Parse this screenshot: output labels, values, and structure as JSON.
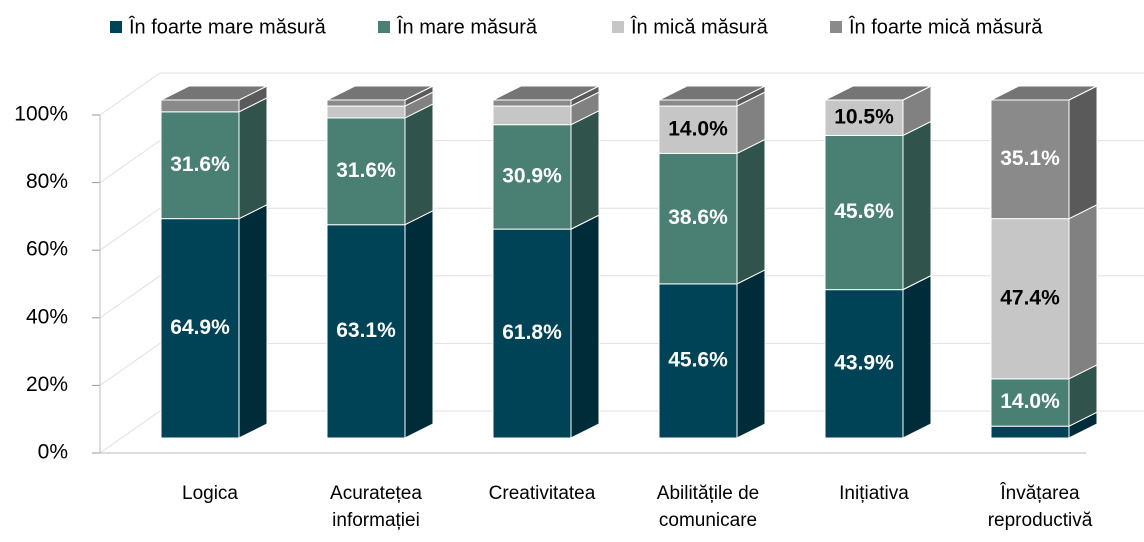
{
  "chart_data": {
    "type": "bar3d_stacked",
    "categories": [
      "Logica",
      "Acuratețea informației",
      "Creativitatea",
      "Abilitățile de comunicare",
      "Inițiativa",
      "Învățarea reproductivă"
    ],
    "series": [
      {
        "name": "În foarte mare măsură",
        "color": "#004357",
        "values": [
          64.9,
          63.1,
          61.8,
          45.6,
          43.9,
          3.5
        ],
        "value_labels": [
          "64.9%",
          "63.1%",
          "61.8%",
          "45.6%",
          "43.9%",
          null
        ]
      },
      {
        "name": "În mare măsură",
        "color": "#4a7f74",
        "values": [
          31.6,
          31.6,
          30.9,
          38.6,
          45.6,
          14.0
        ],
        "value_labels": [
          "31.6%",
          "31.6%",
          "30.9%",
          "38.6%",
          "45.6%",
          "14.0%"
        ]
      },
      {
        "name": "În mică măsură",
        "color": "#c6c6c6",
        "values": [
          0,
          3.5,
          5.5,
          14.0,
          10.5,
          47.4
        ],
        "value_labels": [
          null,
          null,
          null,
          "14.0%",
          "10.5%",
          "47.4%"
        ]
      },
      {
        "name": "În foarte mică măsură",
        "color": "#8a8a8a",
        "values": [
          3.5,
          1.8,
          1.8,
          1.8,
          0,
          35.1
        ],
        "value_labels": [
          null,
          null,
          null,
          null,
          null,
          "35.1%"
        ]
      }
    ],
    "ylim": [
      0,
      100
    ],
    "yticks": [
      {
        "value": 0,
        "label": "0%"
      },
      {
        "value": 20,
        "label": "20%"
      },
      {
        "value": 40,
        "label": "40%"
      },
      {
        "value": 60,
        "label": "60%"
      },
      {
        "value": 80,
        "label": "80%"
      },
      {
        "value": 100,
        "label": "100%"
      }
    ],
    "grid": true,
    "legend": "top"
  }
}
